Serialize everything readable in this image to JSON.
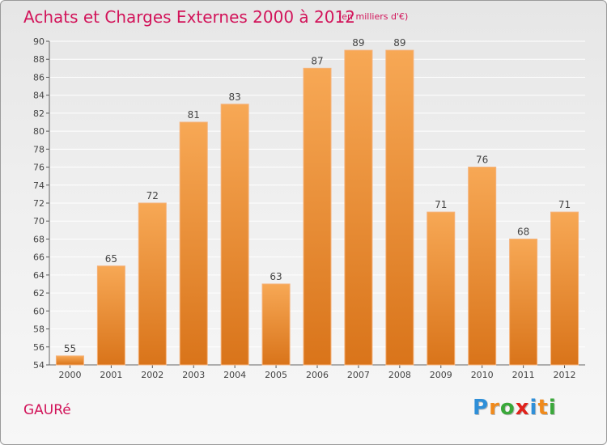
{
  "title": "Achats et Charges Externes 2000 à 2012",
  "subtitle": "(en milliers d'€)",
  "commune": "GAURé",
  "brand": {
    "letters": [
      "P",
      "r",
      "o",
      "x",
      "i",
      "t",
      "i"
    ],
    "colors": [
      "#2f8fd8",
      "#f08a1c",
      "#3aa83a",
      "#e0231c",
      "#2f8fd8",
      "#f08a1c",
      "#3aa83a"
    ]
  },
  "colors": {
    "bar_light": "#f7a855",
    "bar_dark": "#d9741a",
    "text_accent": "#d2145a",
    "axis_text": "#444444",
    "grid": "#ffffff"
  },
  "chart_data": {
    "type": "bar",
    "categories": [
      "2000",
      "2001",
      "2002",
      "2003",
      "2004",
      "2005",
      "2006",
      "2007",
      "2008",
      "2009",
      "2010",
      "2011",
      "2012"
    ],
    "values": [
      55,
      65,
      72,
      81,
      83,
      63,
      87,
      89,
      89,
      71,
      76,
      68,
      71
    ],
    "ylim": [
      54,
      90
    ],
    "yticks": [
      54,
      56,
      58,
      60,
      62,
      64,
      66,
      68,
      70,
      72,
      74,
      76,
      78,
      80,
      82,
      84,
      86,
      88,
      90
    ],
    "grid": true,
    "data_labels": true
  }
}
